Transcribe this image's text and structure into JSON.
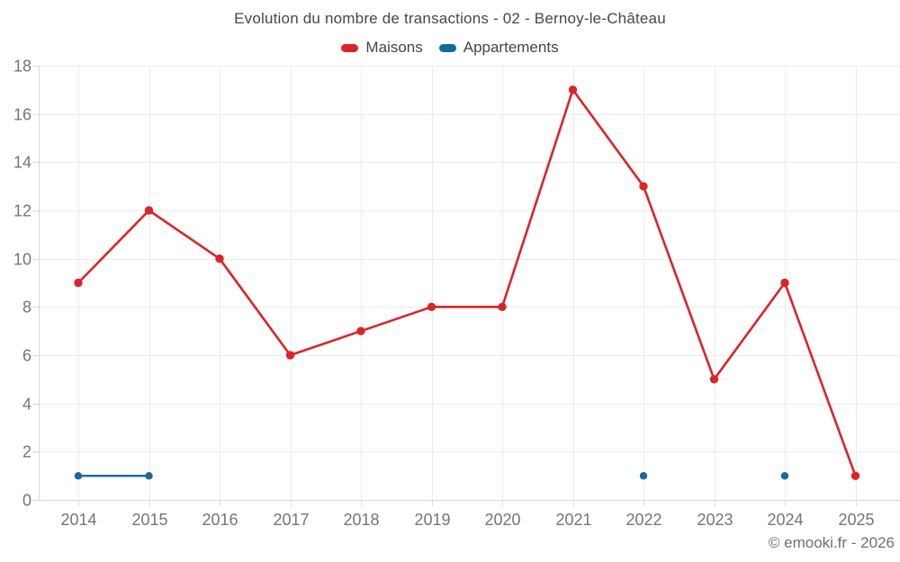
{
  "watermark": "© emooki.fr - 2026",
  "chart_data": {
    "type": "line",
    "title": "Evolution du nombre de transactions - 02 - Bernoy-le-Château",
    "categories": [
      "2014",
      "2015",
      "2016",
      "2017",
      "2018",
      "2019",
      "2020",
      "2021",
      "2022",
      "2023",
      "2024",
      "2025"
    ],
    "series": [
      {
        "name": "Maisons",
        "color": "#db2429",
        "values": [
          9,
          12,
          10,
          6,
          7,
          8,
          8,
          17,
          13,
          5,
          9,
          1
        ]
      },
      {
        "name": "Appartements",
        "color": "#17699c",
        "values": [
          1,
          1,
          null,
          null,
          null,
          null,
          null,
          null,
          1,
          null,
          1,
          null
        ]
      }
    ],
    "ylim": [
      0,
      18
    ],
    "ytick_step": 2,
    "grid": true,
    "legend_position": "top",
    "colors": {
      "grid": "#ececec",
      "axis": "#d9d9d9",
      "tick_label": "#757575",
      "title": "#474747",
      "watermark": "#6f6f6f"
    }
  }
}
